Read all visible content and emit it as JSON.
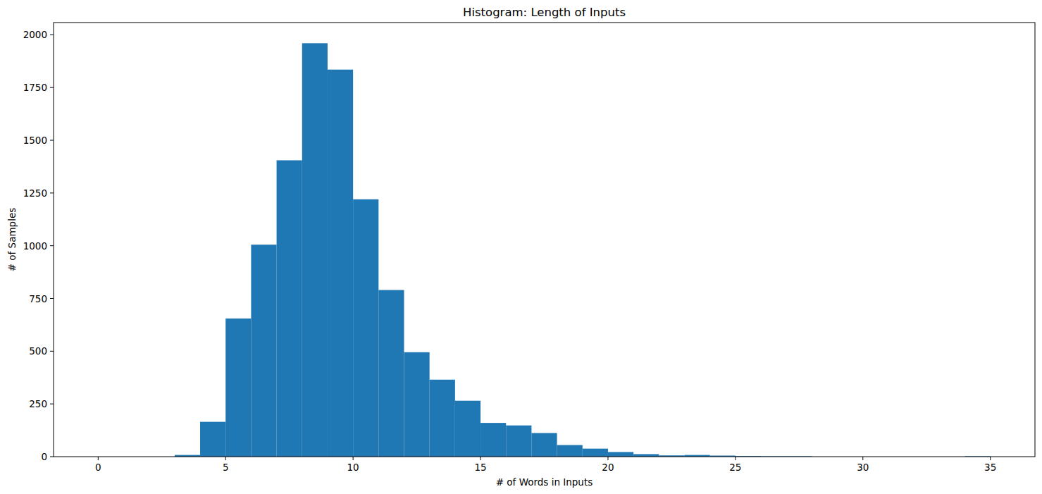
{
  "chart_data": {
    "type": "histogram",
    "title": "Histogram: Length of Inputs",
    "x_label": "# of Words in Inputs",
    "y_label": "# of Samples",
    "bins": [
      0,
      1,
      2,
      3,
      4,
      5,
      6,
      7,
      8,
      9,
      10,
      11,
      12,
      13,
      14,
      15,
      16,
      17,
      18,
      19,
      20,
      21,
      22,
      23,
      24,
      25,
      26,
      27,
      28,
      29,
      30,
      31,
      32,
      33,
      34,
      35
    ],
    "values": [
      0,
      0,
      0,
      8,
      165,
      655,
      1005,
      1405,
      1960,
      1835,
      1220,
      790,
      495,
      365,
      265,
      160,
      148,
      112,
      55,
      38,
      22,
      12,
      6,
      8,
      5,
      3,
      2,
      2,
      0,
      0,
      0,
      0,
      0,
      0,
      2
    ],
    "color": "#1f77b4",
    "xlim": [
      -1.75,
      36.75
    ],
    "xticks": [
      0,
      5,
      10,
      15,
      20,
      25,
      30,
      35
    ],
    "ylim": [
      0,
      2058
    ],
    "yticks": [
      0,
      250,
      500,
      750,
      1000,
      1250,
      1500,
      1750,
      2000
    ],
    "grid": false
  }
}
